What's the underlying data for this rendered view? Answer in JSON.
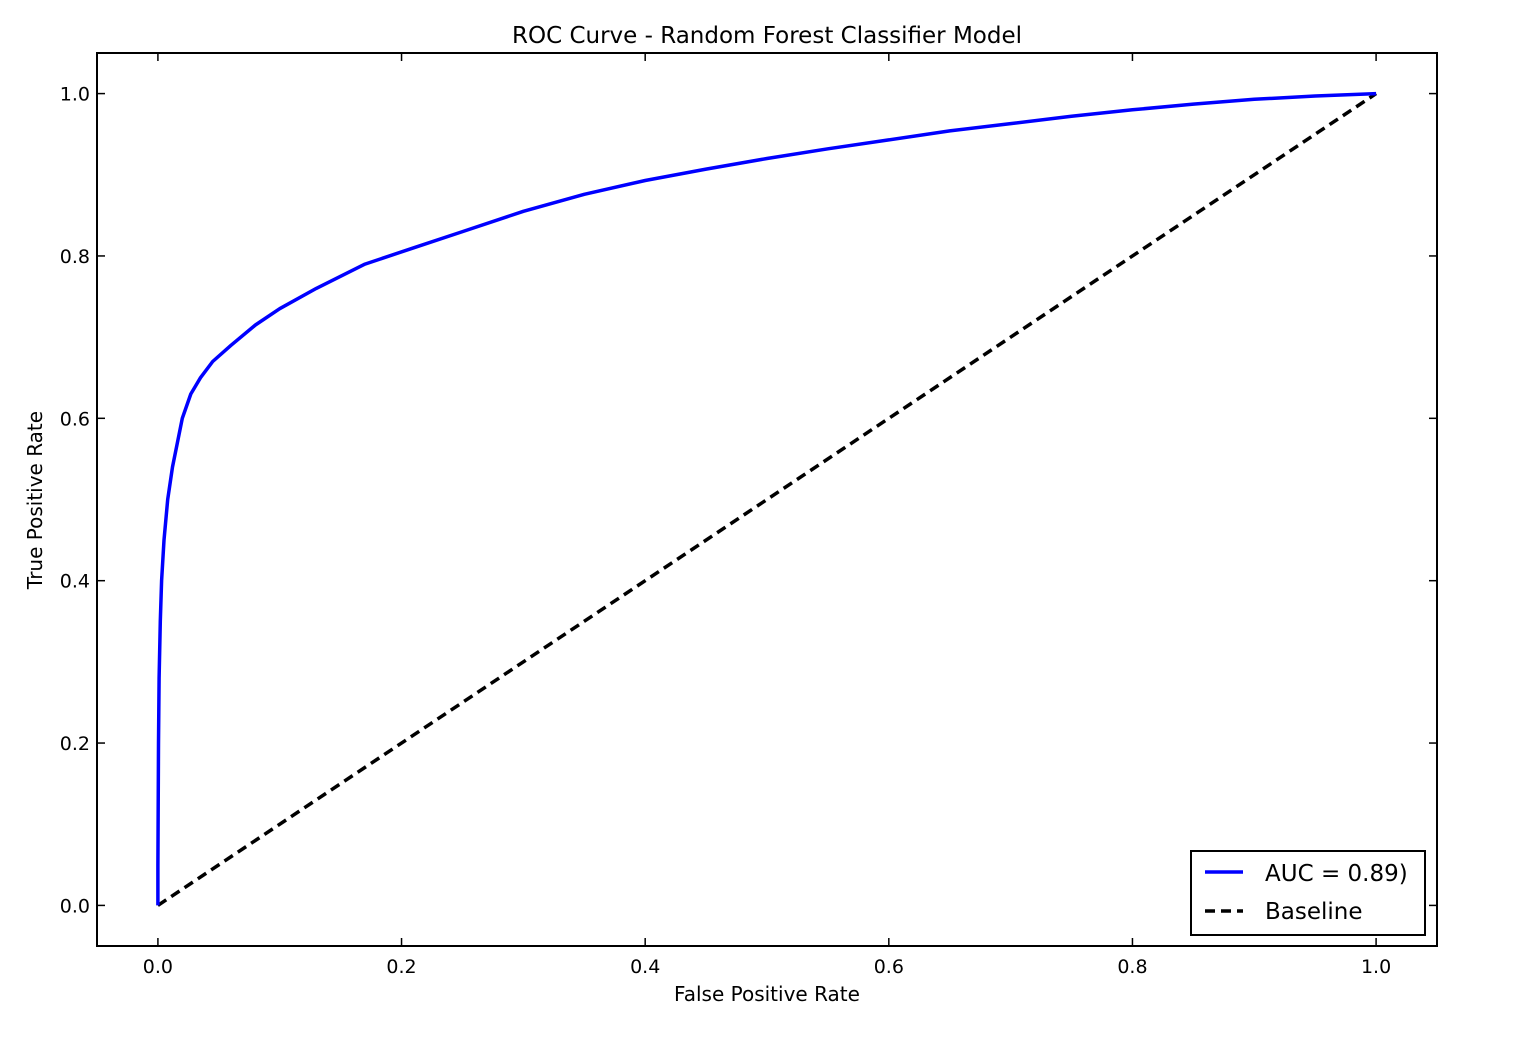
{
  "chart_data": {
    "type": "line",
    "title": "ROC Curve - Random Forest Classifier Model",
    "xlabel": "False Positive Rate",
    "ylabel": "True Positive Rate",
    "xlim": [
      -0.05,
      1.05
    ],
    "ylim": [
      -0.05,
      1.05
    ],
    "xticks": [
      0.0,
      0.2,
      0.4,
      0.6,
      0.8,
      1.0
    ],
    "xtick_labels": [
      "0.0",
      "0.2",
      "0.4",
      "0.6",
      "0.8",
      "1.0"
    ],
    "yticks": [
      0.0,
      0.2,
      0.4,
      0.6,
      0.8,
      1.0
    ],
    "ytick_labels": [
      "0.0",
      "0.2",
      "0.4",
      "0.6",
      "0.8",
      "1.0"
    ],
    "grid": false,
    "legend_position": "lower-right",
    "series": [
      {
        "name": "AUC = 0.89)",
        "color": "#0000ff",
        "linestyle": "solid",
        "x": [
          0.0,
          0.0,
          0.0005,
          0.001,
          0.002,
          0.003,
          0.005,
          0.008,
          0.012,
          0.016,
          0.02,
          0.027,
          0.035,
          0.045,
          0.06,
          0.08,
          0.1,
          0.13,
          0.17,
          0.21,
          0.25,
          0.3,
          0.35,
          0.4,
          0.45,
          0.5,
          0.55,
          0.6,
          0.65,
          0.7,
          0.75,
          0.8,
          0.85,
          0.9,
          0.95,
          1.0
        ],
        "y": [
          0.0,
          0.05,
          0.2,
          0.28,
          0.35,
          0.4,
          0.45,
          0.5,
          0.54,
          0.57,
          0.6,
          0.63,
          0.65,
          0.67,
          0.69,
          0.715,
          0.735,
          0.76,
          0.79,
          0.81,
          0.83,
          0.855,
          0.876,
          0.893,
          0.907,
          0.92,
          0.932,
          0.943,
          0.954,
          0.963,
          0.972,
          0.98,
          0.987,
          0.993,
          0.997,
          1.0
        ]
      },
      {
        "name": "Baseline",
        "color": "#000000",
        "linestyle": "dashed",
        "x": [
          0.0,
          1.0
        ],
        "y": [
          0.0,
          1.0
        ]
      }
    ]
  }
}
